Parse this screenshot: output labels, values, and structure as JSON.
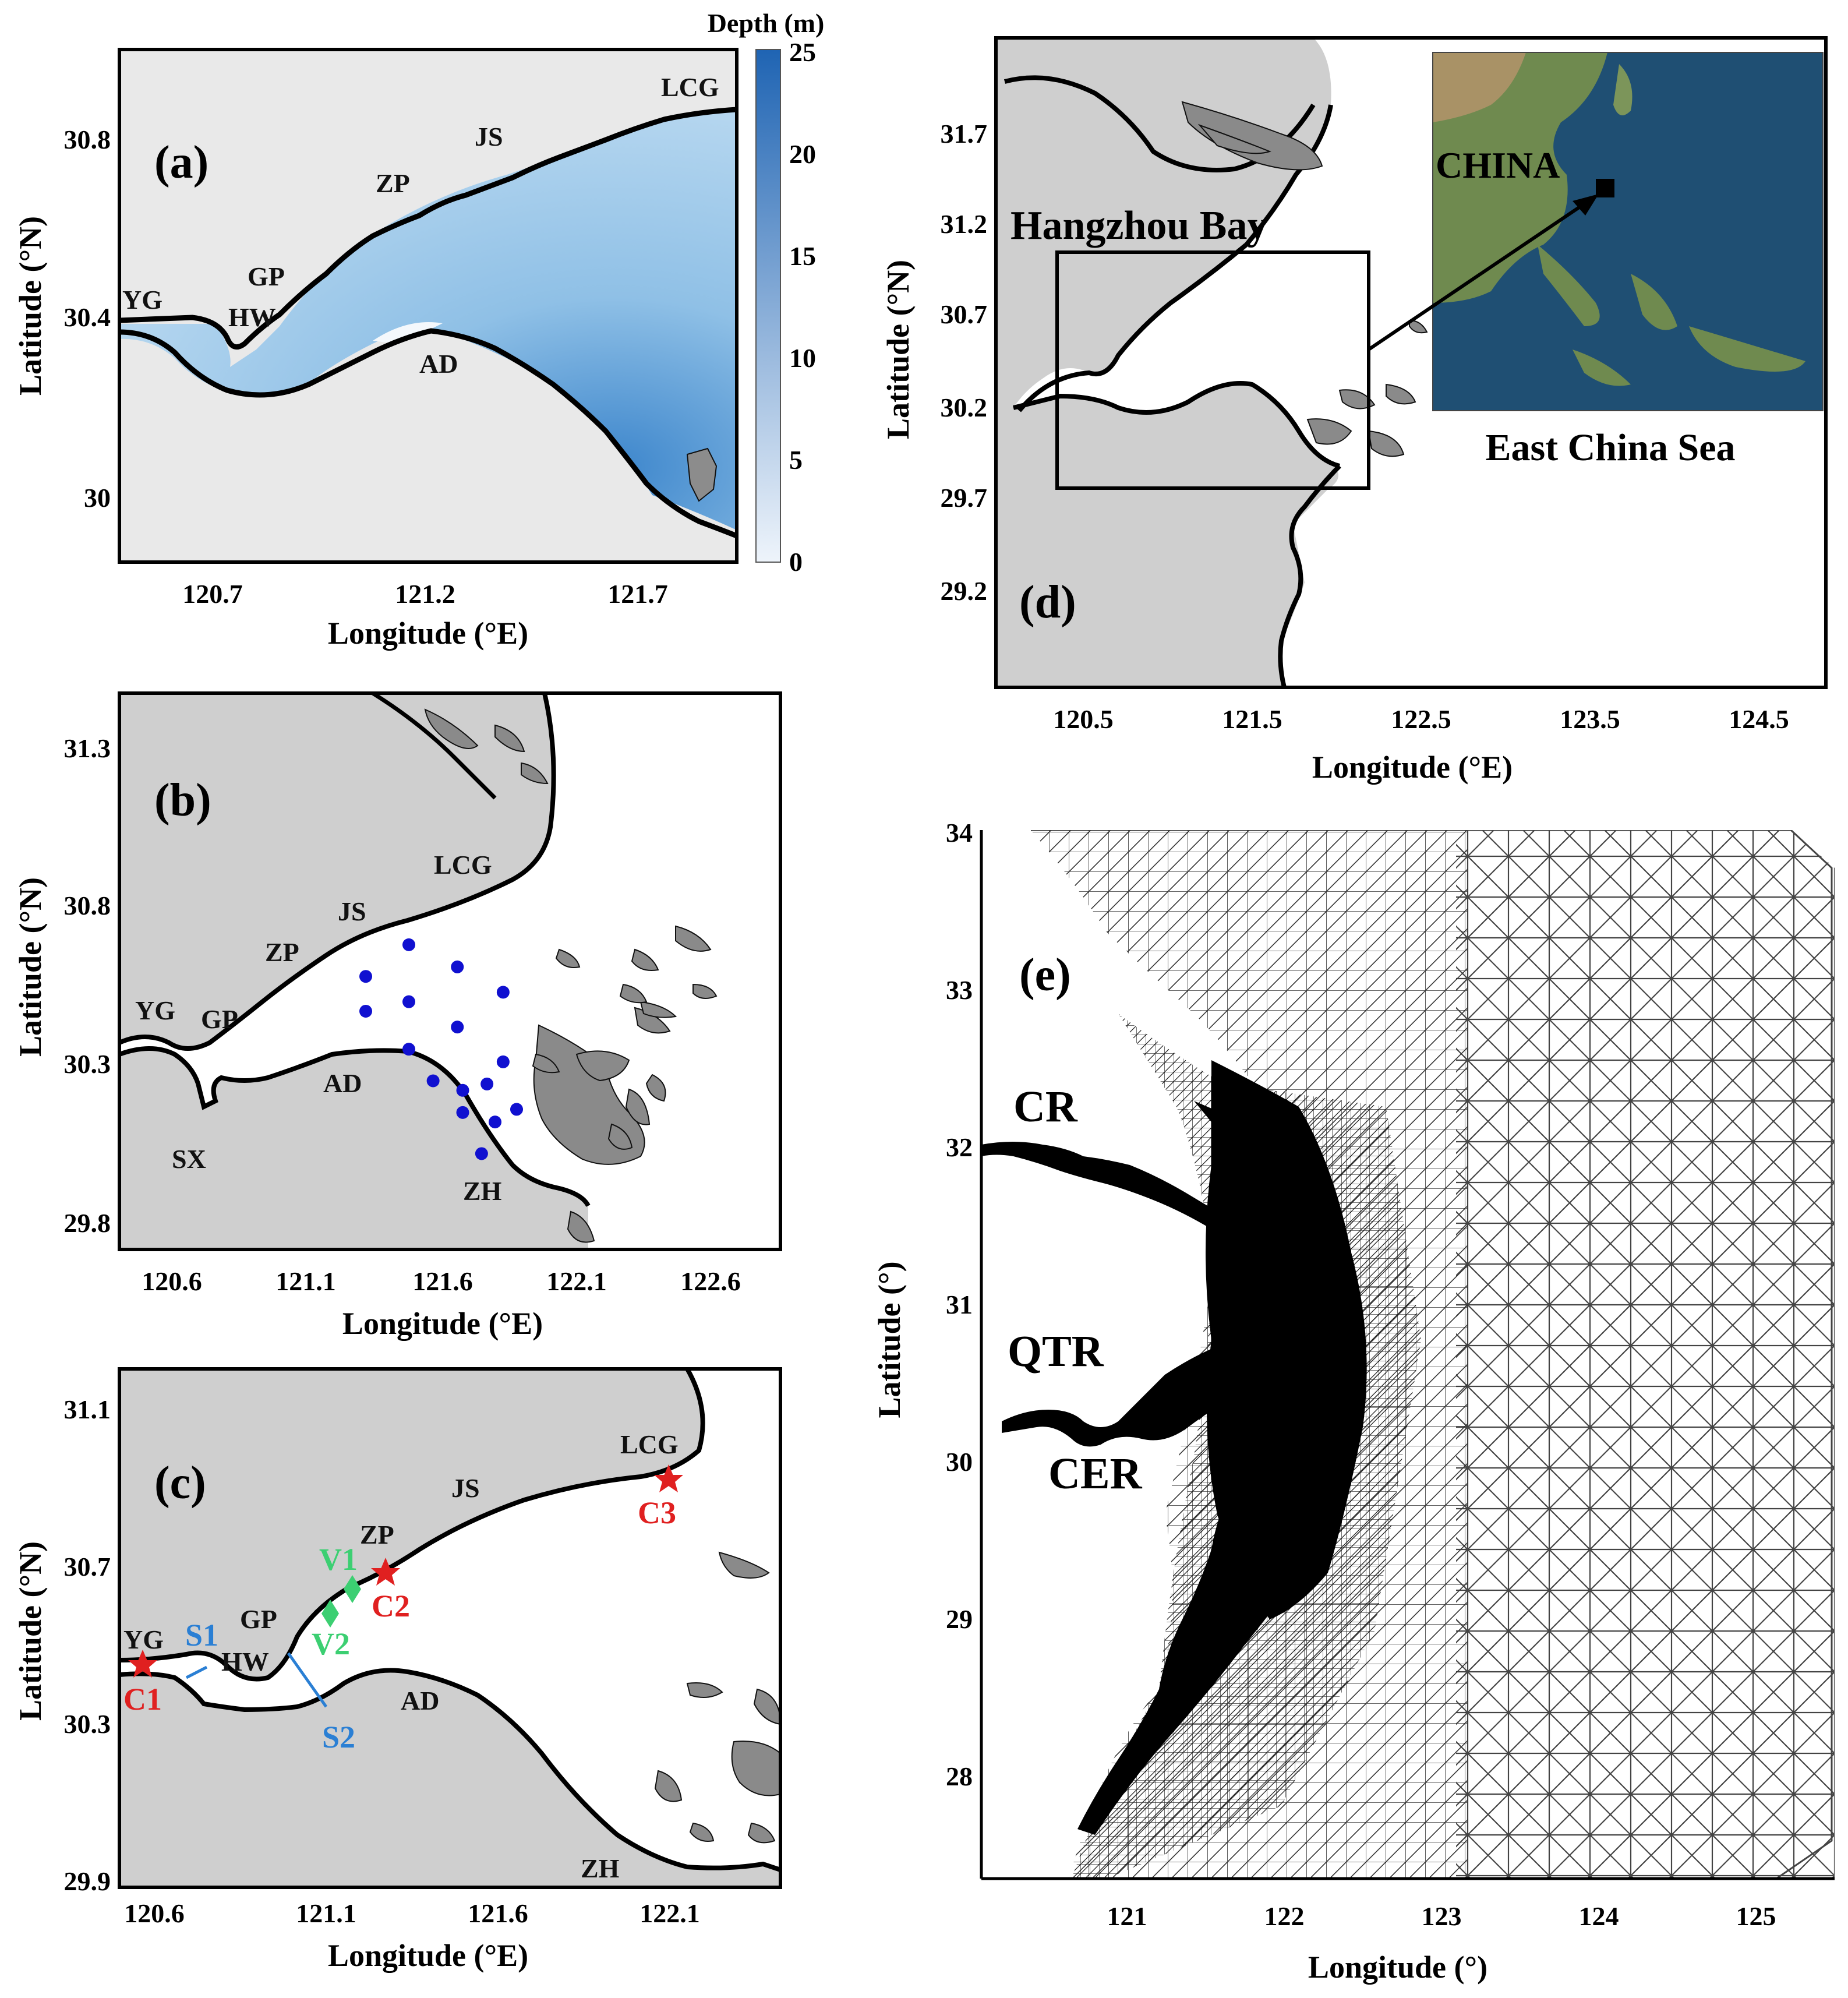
{
  "panels": {
    "a": {
      "label": "(a)",
      "xlabel": "Longitude (°E)",
      "ylabel": "Latitude (°N)",
      "xticks": [
        "120.7",
        "121.2",
        "121.7"
      ],
      "yticks": [
        "30.8",
        "30.4",
        "30"
      ],
      "colorbar": {
        "title": "Depth (m)",
        "ticks": [
          "25",
          "20",
          "15",
          "10",
          "5",
          "0"
        ],
        "color_min": "#eef4fb",
        "color_max": "#1f64b3"
      },
      "places": [
        "LCG",
        "JS",
        "ZP",
        "GP",
        "YG",
        "HW",
        "AD"
      ]
    },
    "b": {
      "label": "(b)",
      "xlabel": "Longitude (°E)",
      "ylabel": "Latitude (°N)",
      "xticks": [
        "120.6",
        "121.1",
        "121.6",
        "122.1",
        "122.6"
      ],
      "yticks": [
        "31.3",
        "30.8",
        "30.3",
        "29.8"
      ],
      "places": [
        "LCG",
        "JS",
        "ZP",
        "YG",
        "GP",
        "AD",
        "SX",
        "ZH"
      ],
      "station_color": "#1010d0",
      "stations": [
        {
          "lon": 121.32,
          "lat": 30.58
        },
        {
          "lon": 121.48,
          "lat": 30.68
        },
        {
          "lon": 121.66,
          "lat": 30.61
        },
        {
          "lon": 121.83,
          "lat": 30.53
        },
        {
          "lon": 121.32,
          "lat": 30.47
        },
        {
          "lon": 121.48,
          "lat": 30.5
        },
        {
          "lon": 121.66,
          "lat": 30.42
        },
        {
          "lon": 121.48,
          "lat": 30.35
        },
        {
          "lon": 121.83,
          "lat": 30.31
        },
        {
          "lon": 121.57,
          "lat": 30.25
        },
        {
          "lon": 121.68,
          "lat": 30.22
        },
        {
          "lon": 121.77,
          "lat": 30.24
        },
        {
          "lon": 121.68,
          "lat": 30.15
        },
        {
          "lon": 121.88,
          "lat": 30.16
        },
        {
          "lon": 121.8,
          "lat": 30.12
        },
        {
          "lon": 121.75,
          "lat": 30.02
        }
      ]
    },
    "c": {
      "label": "(c)",
      "xlabel": "Longitude (°E)",
      "ylabel": "Latitude (°N)",
      "xticks": [
        "120.6",
        "121.1",
        "121.6",
        "122.1"
      ],
      "yticks": [
        "31.1",
        "30.7",
        "30.3",
        "29.9"
      ],
      "places": [
        "LCG",
        "JS",
        "ZP",
        "GP",
        "YG",
        "HW",
        "AD",
        "ZH"
      ],
      "tide_stations": [
        "C1",
        "C2",
        "C3"
      ],
      "velocity_stations": [
        "V1",
        "V2"
      ],
      "sections": [
        "S1",
        "S2"
      ],
      "colors": {
        "tide": "#e02020",
        "velocity": "#3ccf72",
        "section": "#2a7fd4"
      }
    },
    "d": {
      "label": "(d)",
      "xlabel": "Longitude (°E)",
      "ylabel": "Latitude (°N)",
      "xticks": [
        "120.5",
        "121.5",
        "122.5",
        "123.5",
        "124.5"
      ],
      "yticks": [
        "31.7",
        "31.2",
        "30.7",
        "30.2",
        "29.7",
        "29.2"
      ],
      "region_name": "Hangzhou Bay",
      "inset_country": "CHINA",
      "inset_sea": "East China Sea"
    },
    "e": {
      "label": "(e)",
      "xlabel": "Longitude (°)",
      "ylabel": "Latitude (°)",
      "xticks": [
        "121",
        "122",
        "123",
        "124",
        "125"
      ],
      "yticks": [
        "34",
        "33",
        "32",
        "31",
        "30",
        "29",
        "28"
      ],
      "rivers": [
        "CR",
        "QTR",
        "CER"
      ]
    }
  }
}
